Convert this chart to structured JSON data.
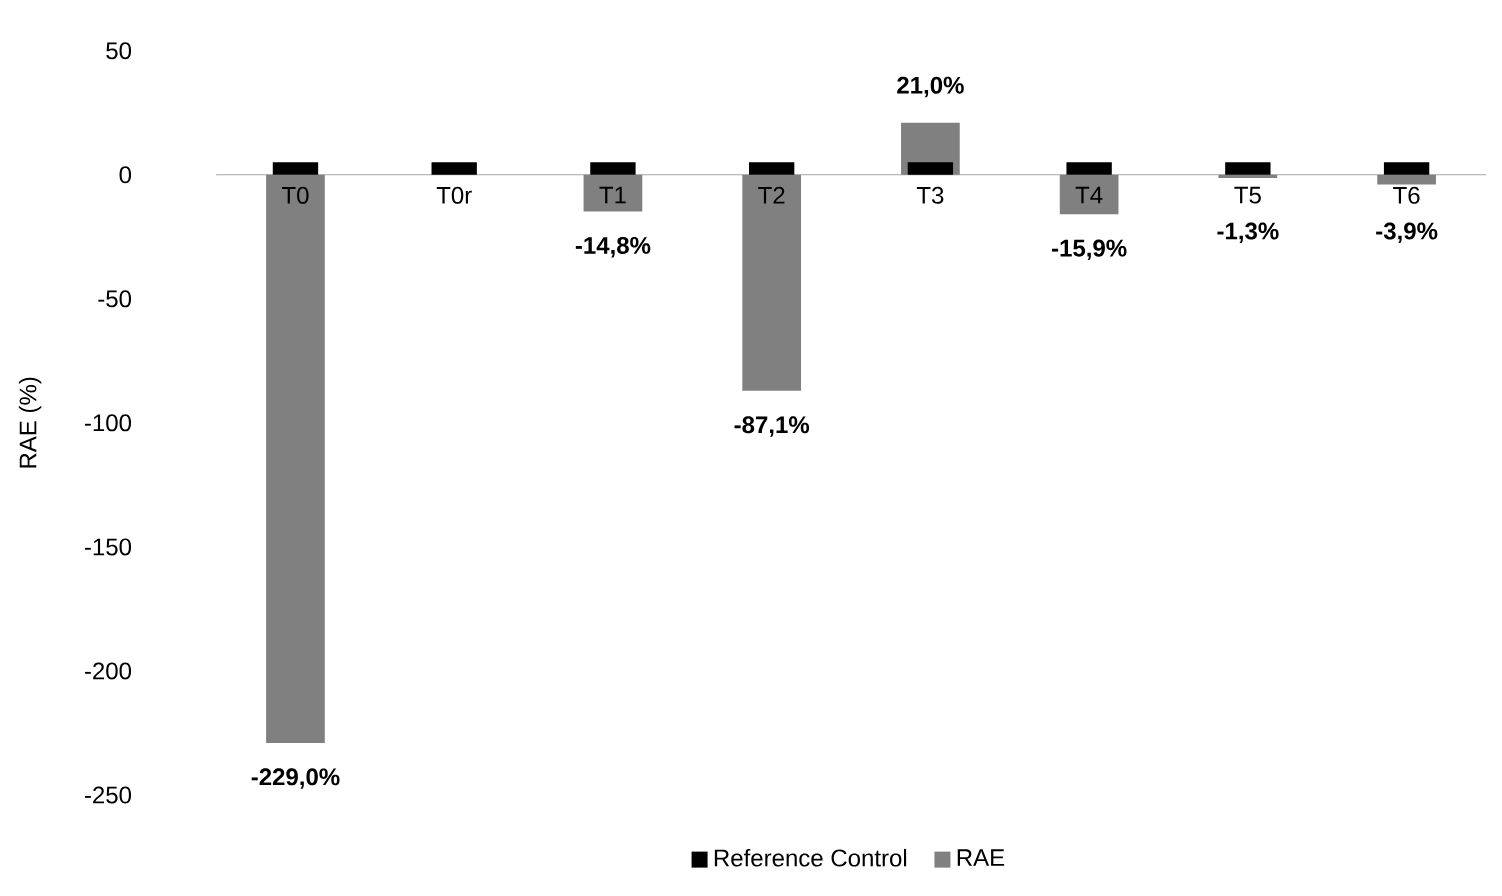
{
  "chart_data": {
    "type": "bar",
    "ylabel": "RAE (%)",
    "categories": [
      "T0",
      "T0r",
      "T1",
      "T2",
      "T3",
      "T4",
      "T5",
      "T6"
    ],
    "series": [
      {
        "name": "Reference Control",
        "color": "#000000",
        "values": [
          5,
          5,
          5,
          5,
          5,
          5,
          5,
          5
        ]
      },
      {
        "name": "RAE",
        "color": "#808080",
        "values": [
          -229.0,
          0,
          -14.8,
          -87.1,
          21.0,
          -15.9,
          -1.3,
          -3.9
        ],
        "value_labels": [
          "-229,0%",
          null,
          "-14,8%",
          "-87,1%",
          "21,0%",
          "-15,9%",
          "-1,3%",
          "-3,9%"
        ]
      }
    ],
    "ylim": [
      -250,
      50
    ],
    "yticks": [
      -250,
      -200,
      -150,
      -100,
      -50,
      0,
      50
    ],
    "legend": "bottom"
  }
}
